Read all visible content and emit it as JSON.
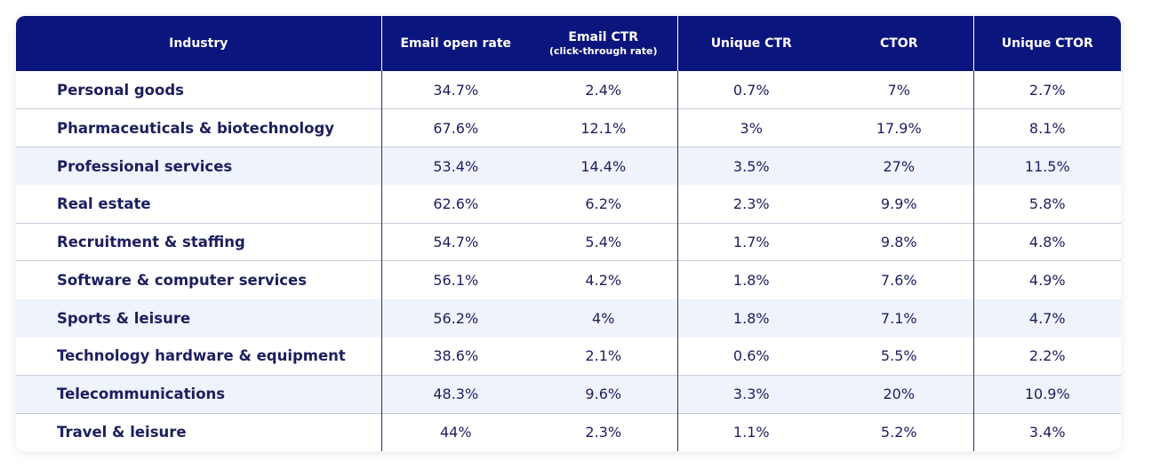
{
  "table": {
    "headers": [
      {
        "label": "Industry",
        "sub": ""
      },
      {
        "label": "Email open rate",
        "sub": ""
      },
      {
        "label": "Email CTR",
        "sub": "(click-through rate)"
      },
      {
        "label": "Unique CTR",
        "sub": ""
      },
      {
        "label": "CTOR",
        "sub": ""
      },
      {
        "label": "Unique CTOR",
        "sub": ""
      }
    ],
    "rows": [
      [
        "Personal goods",
        "34.7%",
        "2.4%",
        "0.7%",
        "7%",
        "2.7%"
      ],
      [
        "Pharmaceuticals & biotechnology",
        "67.6%",
        "12.1%",
        "3%",
        "17.9%",
        "8.1%"
      ],
      [
        "Professional services",
        "53.4%",
        "14.4%",
        "3.5%",
        "27%",
        "11.5%"
      ],
      [
        "Real estate",
        "62.6%",
        "6.2%",
        "2.3%",
        "9.9%",
        "5.8%"
      ],
      [
        "Recruitment & staffing",
        "54.7%",
        "5.4%",
        "1.7%",
        "9.8%",
        "4.8%"
      ],
      [
        "Software & computer services",
        "56.1%",
        "4.2%",
        "1.8%",
        "7.6%",
        "4.9%"
      ],
      [
        "Sports & leisure",
        "56.2%",
        "4%",
        "1.8%",
        "7.1%",
        "4.7%"
      ],
      [
        "Technology hardware & equipment",
        "38.6%",
        "2.1%",
        "0.6%",
        "5.5%",
        "2.2%"
      ],
      [
        "Telecommunications",
        "48.3%",
        "9.6%",
        "3.3%",
        "20%",
        "10.9%"
      ],
      [
        "Travel & leisure",
        "44%",
        "2.3%",
        "1.1%",
        "5.2%",
        "3.4%"
      ]
    ]
  },
  "colors": {
    "header_bg": "#0b157e",
    "alt_row_bg": "#eef3fc",
    "text": "#1c1f5e"
  }
}
